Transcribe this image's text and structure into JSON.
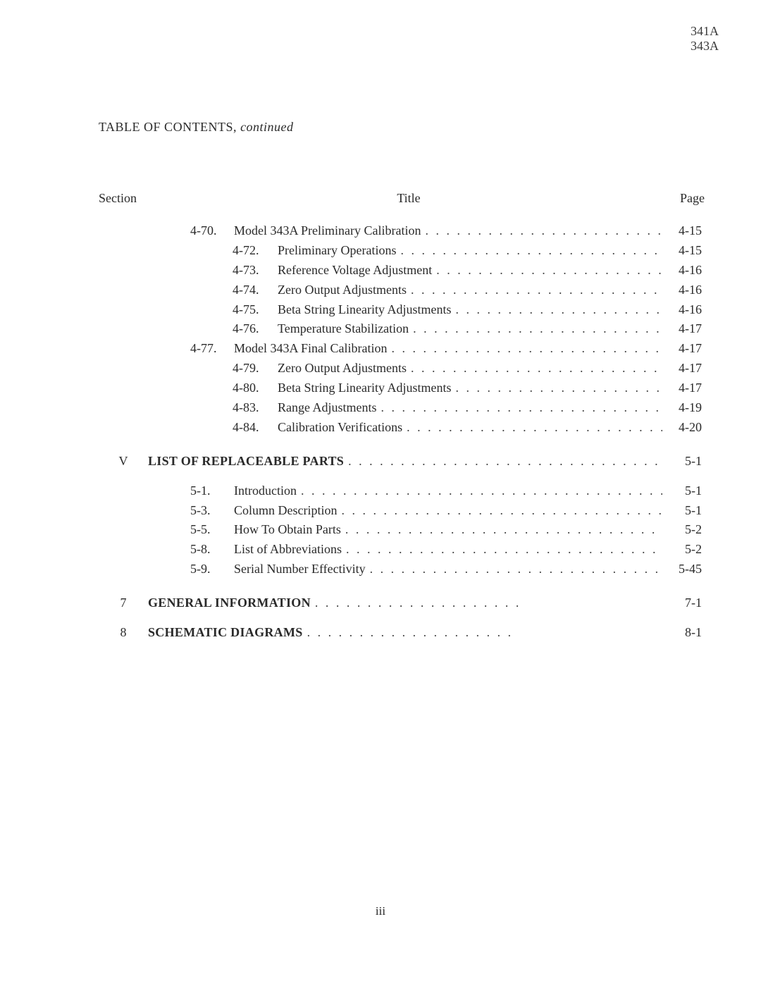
{
  "header": {
    "model_top": "341A",
    "model_bot": "343A"
  },
  "toc_heading_prefix": "TABLE OF CONTENTS, ",
  "toc_heading_suffix": "continued",
  "columns": {
    "section": "Section",
    "title": "Title",
    "page": "Page"
  },
  "dots": ". . . . . . . . . . . . . . . . . . . . . . . . . . . . . . . . . . . . . . . . . . . . . . . . . . .",
  "spaced_dots": " .   .   .   .   .   .   .   .   .   .   .   .   .   .   .   .   .   .   .   .",
  "page_number": "iii",
  "rows": [
    {
      "sec": "",
      "indent": 1,
      "num": "4-70.",
      "lvl": 1,
      "title": "Model 343A Preliminary Calibration",
      "page": "4-15",
      "leader": "dots"
    },
    {
      "sec": "",
      "indent": 2,
      "num": "4-72.",
      "lvl": 2,
      "title": "Preliminary Operations",
      "page": "4-15",
      "leader": "dots"
    },
    {
      "sec": "",
      "indent": 2,
      "num": "4-73.",
      "lvl": 2,
      "title": "Reference Voltage Adjustment",
      "page": "4-16",
      "leader": "dots"
    },
    {
      "sec": "",
      "indent": 2,
      "num": "4-74.",
      "lvl": 2,
      "title": "Zero Output Adjustments",
      "page": "4-16",
      "leader": "dots"
    },
    {
      "sec": "",
      "indent": 2,
      "num": "4-75.",
      "lvl": 2,
      "title": "Beta String Linearity Adjustments",
      "page": "4-16",
      "leader": "dots"
    },
    {
      "sec": "",
      "indent": 2,
      "num": "4-76.",
      "lvl": 2,
      "title": "Temperature Stabilization",
      "page": "4-17",
      "leader": "dots"
    },
    {
      "sec": "",
      "indent": 1,
      "num": "4-77.",
      "lvl": 1,
      "title": "Model 343A Final Calibration",
      "page": "4-17",
      "leader": "dots"
    },
    {
      "sec": "",
      "indent": 2,
      "num": "4-79.",
      "lvl": 2,
      "title": "Zero Output Adjustments",
      "page": "4-17",
      "leader": "dots"
    },
    {
      "sec": "",
      "indent": 2,
      "num": "4-80.",
      "lvl": 2,
      "title": "Beta String Linearity Adjustments",
      "page": "4-17",
      "leader": "dots"
    },
    {
      "sec": "",
      "indent": 2,
      "num": "4-83.",
      "lvl": 2,
      "title": "Range Adjustments",
      "page": "4-19",
      "leader": "dots"
    },
    {
      "sec": "",
      "indent": 2,
      "num": "4-84.",
      "lvl": 2,
      "title": "Calibration Verifications",
      "page": "4-20",
      "leader": "dots"
    },
    {
      "gap": "md"
    },
    {
      "sec": "V",
      "indent": 0,
      "num": "",
      "lvl": 0,
      "title_caps_bold": "LIST OF REPLACEABLE PARTS",
      "page": "5-1",
      "leader": "dots"
    },
    {
      "gap": "sm"
    },
    {
      "sec": "",
      "indent": 1,
      "num": "5-1.",
      "lvl": 1,
      "title": "Introduction",
      "page": "5-1",
      "leader": "dots"
    },
    {
      "sec": "",
      "indent": 1,
      "num": "5-3.",
      "lvl": 1,
      "title": "Column Description",
      "page": "5-1",
      "leader": "dots"
    },
    {
      "sec": "",
      "indent": 1,
      "num": "5-5.",
      "lvl": 1,
      "title": "How To Obtain Parts",
      "page": "5-2",
      "leader": "dots"
    },
    {
      "sec": "",
      "indent": 1,
      "num": "5-8.",
      "lvl": 1,
      "title": "List of Abbreviations",
      "page": "5-2",
      "leader": "dots"
    },
    {
      "sec": "",
      "indent": 1,
      "num": "5-9.",
      "lvl": 1,
      "title": "Serial Number Effectivity",
      "page": "5-45",
      "leader": "dots"
    },
    {
      "gap": "md"
    },
    {
      "sec": "7",
      "indent": 0,
      "num": "",
      "lvl": 0,
      "title_caps_bold": "GENERAL INFORMATION",
      "page": "7-1",
      "leader": "spaced"
    },
    {
      "gap": "sm"
    },
    {
      "sec": "8",
      "indent": 0,
      "num": "",
      "lvl": 0,
      "title_caps_bold": "SCHEMATIC DIAGRAMS",
      "page": "8-1",
      "leader": "spaced"
    }
  ]
}
